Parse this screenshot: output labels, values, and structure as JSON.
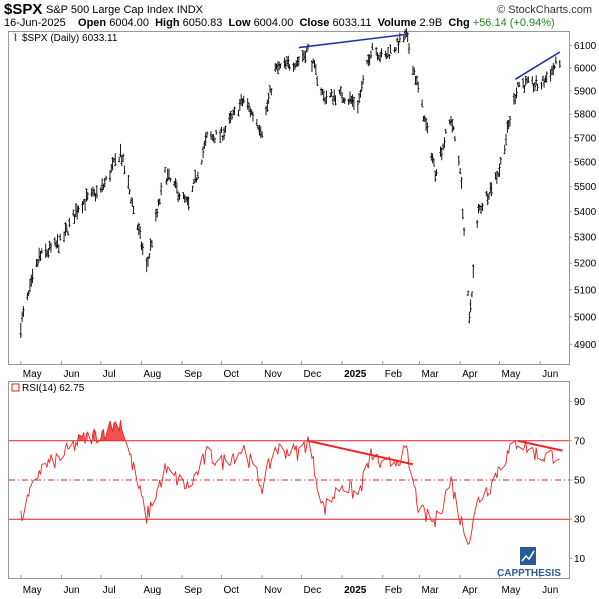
{
  "header": {
    "symbol": "$SPX",
    "name": "S&P 500 Large Cap Index",
    "exchange": "INDX",
    "brand": "© StockCharts.com",
    "date": "16-Jun-2025",
    "open_label": "Open",
    "open": "6004.00",
    "high_label": "High",
    "high": "6050.83",
    "low_label": "Low",
    "low": "6004.00",
    "close_label": "Close",
    "close": "6033.11",
    "volume_label": "Volume",
    "volume": "2.9B",
    "chg_label": "Chg",
    "chg": "+56.14 (+0.94%)"
  },
  "price_panel": {
    "legend": "$SPX (Daily) 6033.11",
    "y_ticks": [
      6100,
      6000,
      5900,
      5800,
      5700,
      5600,
      5500,
      5400,
      5300,
      5200,
      5100,
      5000,
      4900
    ],
    "y_tick_labels": [
      "6100",
      "6000",
      "5900",
      "5800",
      "5700",
      "5600",
      "5500",
      "5400",
      "5300",
      "5200",
      "5100",
      "5000",
      "4900"
    ],
    "ylim": [
      4830,
      6160
    ],
    "line_color": "#2233aa",
    "bar_color": "#000000"
  },
  "rsi_panel": {
    "legend": "RSI(14) 62.75",
    "y_ticks": [
      90,
      70,
      50,
      30,
      10
    ],
    "y_tick_labels": [
      "90",
      "70",
      "50",
      "30",
      "10"
    ],
    "ylim": [
      0,
      100
    ],
    "levels": {
      "upper": 70,
      "middle": 50,
      "lower": 30
    },
    "line_color": "#ee2222",
    "fill_color": "#ee3333"
  },
  "x_axis": {
    "months": [
      "May",
      "Jun",
      "Jul",
      "Aug",
      "Sep",
      "Oct",
      "Nov",
      "Dec",
      "2025",
      "Feb",
      "Mar",
      "Apr",
      "May",
      "Jun"
    ],
    "bold": [
      false,
      false,
      false,
      false,
      false,
      false,
      false,
      false,
      true,
      false,
      false,
      false,
      false,
      false
    ]
  },
  "logo": {
    "text": "CAPPTHESIS",
    "color": "#2b5a9a"
  },
  "chart_data": [
    {
      "type": "line",
      "title": "$SPX (Daily) 6033.11",
      "xlabel": "",
      "ylabel": "",
      "x": [
        "2024-05-01",
        "2024-05-15",
        "2024-06-01",
        "2024-06-15",
        "2024-07-01",
        "2024-07-16",
        "2024-08-05",
        "2024-08-19",
        "2024-09-06",
        "2024-09-20",
        "2024-10-01",
        "2024-10-18",
        "2024-11-01",
        "2024-11-11",
        "2024-11-29",
        "2024-12-06",
        "2024-12-18",
        "2025-01-01",
        "2025-01-13",
        "2025-01-24",
        "2025-02-01",
        "2025-02-19",
        "2025-03-01",
        "2025-03-13",
        "2025-03-25",
        "2025-04-01",
        "2025-04-08",
        "2025-04-15",
        "2025-04-25",
        "2025-05-01",
        "2025-05-15",
        "2025-06-01",
        "2025-06-16"
      ],
      "series": [
        {
          "values": [
            4970,
            5220,
            5280,
            5430,
            5480,
            5640,
            5180,
            5550,
            5420,
            5700,
            5710,
            5860,
            5730,
            5990,
            6030,
            6080,
            5870,
            5880,
            5840,
            6100,
            6040,
            6140,
            5880,
            5560,
            5780,
            5580,
            4980,
            5400,
            5500,
            5570,
            5930,
            5920,
            6033
          ]
        }
      ],
      "ylim": [
        4830,
        6160
      ],
      "y_scale": "log",
      "grid": false,
      "trendlines": [
        {
          "x": [
            "2024-11-29",
            "2025-02-20"
          ],
          "y": [
            6090,
            6150
          ]
        },
        {
          "x": [
            "2025-05-13",
            "2025-06-16"
          ],
          "y": [
            5950,
            6070
          ]
        }
      ]
    },
    {
      "type": "line",
      "title": "RSI(14) 62.75",
      "xlabel": "",
      "ylabel": "",
      "x": [
        "2024-05-01",
        "2024-05-15",
        "2024-06-01",
        "2024-06-15",
        "2024-07-01",
        "2024-07-16",
        "2024-08-05",
        "2024-08-19",
        "2024-09-06",
        "2024-09-20",
        "2024-10-01",
        "2024-10-18",
        "2024-11-01",
        "2024-11-11",
        "2024-11-29",
        "2024-12-06",
        "2024-12-18",
        "2025-01-01",
        "2025-01-13",
        "2025-01-24",
        "2025-02-01",
        "2025-02-19",
        "2025-03-01",
        "2025-03-13",
        "2025-03-25",
        "2025-04-01",
        "2025-04-08",
        "2025-04-15",
        "2025-04-25",
        "2025-05-01",
        "2025-05-15",
        "2025-06-01",
        "2025-06-16"
      ],
      "series": [
        {
          "values": [
            30,
            55,
            62,
            70,
            74,
            80,
            31,
            55,
            46,
            63,
            59,
            66,
            47,
            66,
            64,
            70,
            35,
            48,
            42,
            64,
            56,
            64,
            34,
            28,
            50,
            30,
            20,
            40,
            48,
            57,
            70,
            62,
            63
          ]
        }
      ],
      "ylim": [
        0,
        100
      ],
      "levels": [
        70,
        50,
        30
      ],
      "grid": false,
      "trendlines": [
        {
          "x": [
            "2024-12-06",
            "2025-02-24"
          ],
          "y": [
            70,
            58
          ]
        },
        {
          "x": [
            "2025-05-15",
            "2025-06-18"
          ],
          "y": [
            70,
            65
          ]
        }
      ]
    }
  ]
}
